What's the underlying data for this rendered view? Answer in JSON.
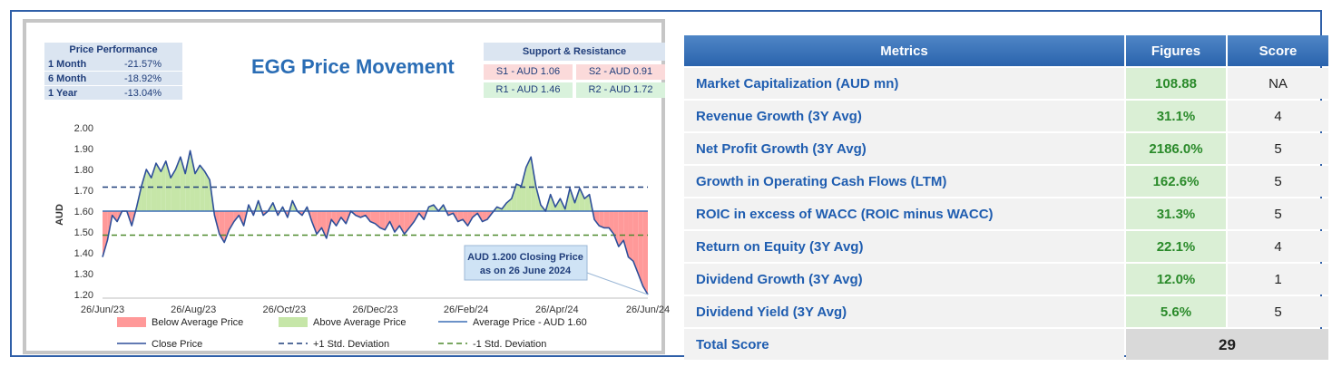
{
  "performance": {
    "header": "Price Performance",
    "rows": [
      {
        "label": "1 Month",
        "value": "-21.57%"
      },
      {
        "label": "6 Month",
        "value": "-18.92%"
      },
      {
        "label": "1 Year",
        "value": "-13.04%"
      }
    ]
  },
  "support_resistance": {
    "header": "Support & Resistance",
    "s1": "S1 - AUD 1.06",
    "s2": "S2 - AUD 0.91",
    "r1": "R1 - AUD 1.46",
    "r2": "R2 - AUD 1.72"
  },
  "chart_data": {
    "type": "line",
    "title": "EGG Price Movement",
    "ylabel": "AUD",
    "ylim": [
      1.2,
      2.0
    ],
    "y_ticks": [
      "2.00",
      "1.90",
      "1.80",
      "1.70",
      "1.60",
      "1.50",
      "1.40",
      "1.30",
      "1.20"
    ],
    "x_ticks": [
      "26/Jun/23",
      "26/Aug/23",
      "26/Oct/23",
      "26/Dec/23",
      "26/Feb/24",
      "26/Apr/24",
      "26/Jun/24"
    ],
    "average": 1.6,
    "plus_std": 1.715,
    "minus_std": 1.485,
    "close_prices": [
      1.38,
      1.46,
      1.58,
      1.55,
      1.6,
      1.6,
      1.53,
      1.62,
      1.72,
      1.8,
      1.76,
      1.83,
      1.79,
      1.84,
      1.76,
      1.8,
      1.86,
      1.78,
      1.89,
      1.78,
      1.82,
      1.79,
      1.75,
      1.58,
      1.49,
      1.45,
      1.51,
      1.55,
      1.58,
      1.53,
      1.63,
      1.58,
      1.65,
      1.58,
      1.6,
      1.64,
      1.58,
      1.62,
      1.57,
      1.65,
      1.6,
      1.58,
      1.62,
      1.55,
      1.49,
      1.52,
      1.47,
      1.56,
      1.53,
      1.57,
      1.54,
      1.6,
      1.58,
      1.57,
      1.58,
      1.55,
      1.54,
      1.52,
      1.51,
      1.55,
      1.5,
      1.53,
      1.49,
      1.52,
      1.55,
      1.59,
      1.56,
      1.62,
      1.63,
      1.6,
      1.63,
      1.58,
      1.59,
      1.55,
      1.56,
      1.53,
      1.57,
      1.59,
      1.55,
      1.56,
      1.59,
      1.62,
      1.61,
      1.64,
      1.66,
      1.73,
      1.72,
      1.81,
      1.86,
      1.72,
      1.63,
      1.6,
      1.68,
      1.62,
      1.66,
      1.61,
      1.71,
      1.64,
      1.71,
      1.66,
      1.68,
      1.56,
      1.53,
      1.52,
      1.52,
      1.49,
      1.43,
      1.46,
      1.38,
      1.36,
      1.3,
      1.24,
      1.2
    ],
    "annotation": "AUD 1.200 Closing Price as on 26 June 2024",
    "annotation_line1": "AUD 1.200 Closing Price",
    "annotation_line2": "as on 26 June 2024",
    "legend": [
      {
        "name": "Below Average Price",
        "color": "#ff9999"
      },
      {
        "name": "Above Average Price",
        "color": "#c6e6a8"
      },
      {
        "name": "Average Price - AUD 1.60",
        "color": "#3c6fb5"
      },
      {
        "name": "Close Price",
        "color": "#2e4f9a"
      },
      {
        "name": "+1 Std. Deviation",
        "color": "#1f3f7a"
      },
      {
        "name": "-1 Std. Deviation",
        "color": "#4e8a2e"
      }
    ]
  },
  "metrics": {
    "headers": {
      "metric": "Metrics",
      "figure": "Figures",
      "score": "Score"
    },
    "rows": [
      {
        "metric": "Market Capitalization (AUD mn)",
        "figure": "108.88",
        "score": "NA"
      },
      {
        "metric": "Revenue Growth (3Y Avg)",
        "figure": "31.1%",
        "score": "4"
      },
      {
        "metric": "Net Profit Growth (3Y Avg)",
        "figure": "2186.0%",
        "score": "5"
      },
      {
        "metric": "Growth in Operating Cash Flows (LTM)",
        "figure": "162.6%",
        "score": "5"
      },
      {
        "metric": "ROIC in excess of WACC (ROIC minus WACC)",
        "figure": "31.3%",
        "score": "5"
      },
      {
        "metric": "Return on Equity (3Y Avg)",
        "figure": "22.1%",
        "score": "4"
      },
      {
        "metric": "Dividend Growth (3Y Avg)",
        "figure": "12.0%",
        "score": "1"
      },
      {
        "metric": "Dividend Yield (3Y Avg)",
        "figure": "5.6%",
        "score": "5"
      }
    ],
    "total_label": "Total Score",
    "total_value": "29"
  }
}
